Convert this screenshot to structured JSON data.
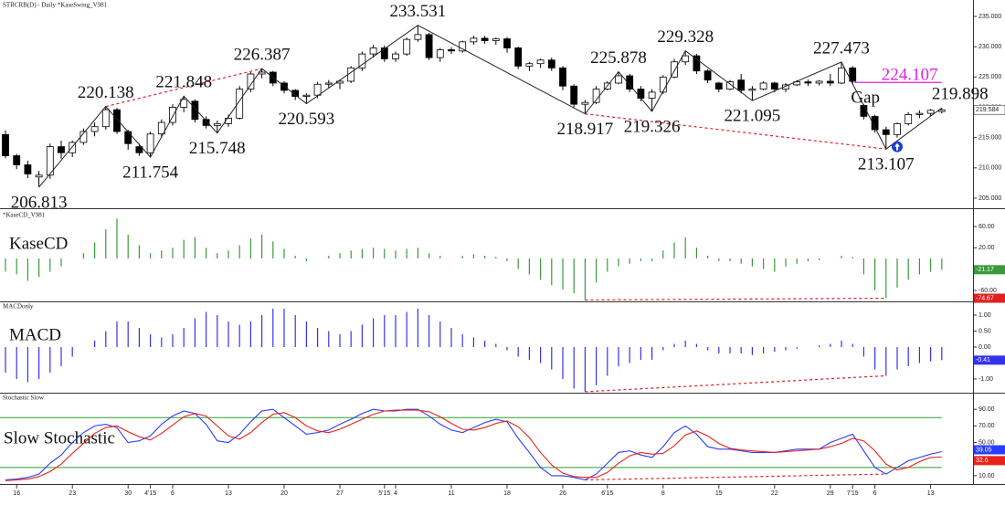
{
  "chart_data": [
    {
      "type": "candlestick",
      "title": "STRCRB(D) - Daily  *KaseSwing_V981",
      "open": [
        215.5,
        212.0,
        210.5,
        208.5,
        208.8,
        213.5,
        212.5,
        214.2,
        216.0,
        216.8,
        219.6,
        216.0,
        213.5,
        212.5,
        215.6,
        217.5,
        220.0,
        221.0,
        218.0,
        217.0,
        217.3,
        218.2,
        223.0,
        225.5,
        225.8,
        224.0,
        222.8,
        221.8,
        222.0,
        223.8,
        224.0,
        224.3,
        226.5,
        228.8,
        229.8,
        228.0,
        228.8,
        231.2,
        232.0,
        228.2,
        229.5,
        229.3,
        230.8,
        231.4,
        231.0,
        231.3,
        229.8,
        226.8,
        227.2,
        227.8,
        226.5,
        223.5,
        220.5,
        220.8,
        223.0,
        224.0,
        225.2,
        223.0,
        221.5,
        222.5,
        225.0,
        227.5,
        228.5,
        226.0,
        224.0,
        223.0,
        224.5,
        222.8,
        223.0,
        224.0,
        223.0,
        223.7,
        224.2,
        224.0,
        224.3,
        224.0,
        226.5,
        220.3,
        218.5,
        216.3,
        215.5,
        217.3,
        218.8,
        219.0,
        219.3
      ],
      "high": [
        216.2,
        212.3,
        211.2,
        209.5,
        214.0,
        214.5,
        214.5,
        216.5,
        217.5,
        220.138,
        219.9,
        216.3,
        214.0,
        216.0,
        218.0,
        220.5,
        221.848,
        221.3,
        218.5,
        217.8,
        218.8,
        223.5,
        225.8,
        226.387,
        226.0,
        224.3,
        223.0,
        222.3,
        224.2,
        224.5,
        224.6,
        226.8,
        229.2,
        230.3,
        230.2,
        229.2,
        231.5,
        233.531,
        232.3,
        229.8,
        229.9,
        231.0,
        231.8,
        231.8,
        231.5,
        231.6,
        230.0,
        227.5,
        228.0,
        228.2,
        226.8,
        223.8,
        221.2,
        223.5,
        224.3,
        225.878,
        225.5,
        223.5,
        223.0,
        225.3,
        228.0,
        229.328,
        228.8,
        226.3,
        224.2,
        224.5,
        225.5,
        223.5,
        224.3,
        224.2,
        224.0,
        224.5,
        224.6,
        224.5,
        225.5,
        227.473,
        226.8,
        220.5,
        218.8,
        216.8,
        217.5,
        219.2,
        219.5,
        219.7,
        219.898
      ],
      "low": [
        211.6,
        209.8,
        208.3,
        206.813,
        208.2,
        211.5,
        211.8,
        213.8,
        215.2,
        216.3,
        215.6,
        213.0,
        212.0,
        211.754,
        215.0,
        217.0,
        219.2,
        217.5,
        216.5,
        215.748,
        216.8,
        218.0,
        222.5,
        224.8,
        223.5,
        222.3,
        221.2,
        220.593,
        221.5,
        223.2,
        223.0,
        224.0,
        226.0,
        228.2,
        227.5,
        227.5,
        228.5,
        230.8,
        227.8,
        227.5,
        228.8,
        229.0,
        230.3,
        230.5,
        230.3,
        229.0,
        226.3,
        226.0,
        226.5,
        226.0,
        222.8,
        220.0,
        218.917,
        220.5,
        222.8,
        223.8,
        222.5,
        221.0,
        219.326,
        222.2,
        224.8,
        227.0,
        225.5,
        224.0,
        222.5,
        222.8,
        222.3,
        221.095,
        222.8,
        222.5,
        222.5,
        223.5,
        223.5,
        223.6,
        223.5,
        223.8,
        223.8,
        218.0,
        215.8,
        213.107,
        215.0,
        217.0,
        218.2,
        218.5,
        219.0
      ],
      "close": [
        212.0,
        210.5,
        209.0,
        208.8,
        213.5,
        212.5,
        214.2,
        216.0,
        216.8,
        219.6,
        216.0,
        214.0,
        212.5,
        215.6,
        217.5,
        220.0,
        221.3,
        218.0,
        217.0,
        217.3,
        218.2,
        223.0,
        225.5,
        225.8,
        224.0,
        222.8,
        221.8,
        222.0,
        223.8,
        224.0,
        224.3,
        226.5,
        228.8,
        229.8,
        228.0,
        228.8,
        231.2,
        232.0,
        228.2,
        229.5,
        229.3,
        230.8,
        231.4,
        231.0,
        231.3,
        229.8,
        226.8,
        227.2,
        227.8,
        226.5,
        223.5,
        220.5,
        220.8,
        223.0,
        224.0,
        225.2,
        223.0,
        221.5,
        222.5,
        225.0,
        227.5,
        228.5,
        226.0,
        224.5,
        223.0,
        224.2,
        222.8,
        223.0,
        224.0,
        223.0,
        223.7,
        224.2,
        224.0,
        224.3,
        224.0,
        226.5,
        224.3,
        218.5,
        216.3,
        215.5,
        217.3,
        218.8,
        219.0,
        219.5,
        219.584
      ],
      "up_color": "#ffffff",
      "down_color": "#000000",
      "swings": [
        206.813,
        220.138,
        211.754,
        221.848,
        215.748,
        226.387,
        220.593,
        233.531,
        218.917,
        225.878,
        219.326,
        229.328,
        221.095,
        227.473,
        213.107,
        219.898
      ],
      "level": {
        "value": 224.107,
        "color": "#e020e0"
      },
      "annotation": "Gap",
      "ylim": [
        203.34,
        237.71
      ],
      "yticks": [
        {
          "value": 205,
          "label": "205.000"
        },
        {
          "value": 210,
          "label": "210.000"
        },
        {
          "value": 215,
          "label": "215.000"
        },
        {
          "value": 220,
          "label": "220.000"
        },
        {
          "value": 225,
          "label": "225.000"
        },
        {
          "value": 230,
          "label": "230.000"
        },
        {
          "value": 235,
          "label": "235.000"
        }
      ]
    },
    {
      "type": "bar",
      "title": "*KaseCD_V981",
      "label": "KaseCD",
      "color": "#3a9a3a",
      "values": [
        -25,
        -30,
        -42,
        -35,
        -25,
        -15,
        0,
        10,
        30,
        55,
        75,
        45,
        25,
        10,
        15,
        20,
        35,
        40,
        20,
        10,
        15,
        25,
        38,
        45,
        32,
        18,
        5,
        -5,
        0,
        5,
        10,
        15,
        18,
        20,
        18,
        15,
        18,
        20,
        10,
        5,
        0,
        5,
        8,
        5,
        3,
        -5,
        -20,
        -30,
        -40,
        -50,
        -58,
        -65,
        -78,
        -45,
        -25,
        -15,
        -10,
        -5,
        -5,
        15,
        30,
        40,
        20,
        5,
        -5,
        -5,
        -10,
        -15,
        -20,
        -25,
        -15,
        -10,
        -5,
        -3,
        0,
        5,
        3,
        -30,
        -60,
        -74.67,
        -55,
        -40,
        -30,
        -25,
        -21.17
      ],
      "ylim": [
        -80.6,
        90.9
      ],
      "yticks": [
        {
          "value": 60,
          "label": "60.00"
        },
        {
          "value": 20,
          "label": "20.00"
        },
        {
          "value": -60,
          "label": "-60.00"
        }
      ]
    },
    {
      "type": "bar",
      "title": "MACDonly",
      "label": "MACD",
      "color": "#3333ee",
      "values": [
        -0.8,
        -1.0,
        -1.1,
        -1.0,
        -0.8,
        -0.6,
        -0.3,
        0.0,
        0.2,
        0.5,
        0.8,
        0.8,
        0.6,
        0.4,
        0.3,
        0.4,
        0.6,
        0.9,
        1.1,
        1.0,
        0.8,
        0.7,
        0.8,
        1.0,
        1.2,
        1.2,
        1.0,
        0.8,
        0.6,
        0.5,
        0.4,
        0.5,
        0.7,
        0.9,
        1.0,
        1.0,
        1.1,
        1.2,
        1.0,
        0.8,
        0.6,
        0.4,
        0.3,
        0.2,
        0.1,
        -0.1,
        -0.3,
        -0.4,
        -0.5,
        -0.7,
        -1.0,
        -1.3,
        -1.4,
        -1.2,
        -0.9,
        -0.6,
        -0.5,
        -0.4,
        -0.4,
        -0.1,
        0.1,
        0.2,
        0.1,
        -0.1,
        -0.2,
        -0.2,
        -0.2,
        -0.25,
        -0.2,
        -0.15,
        -0.1,
        -0.05,
        0.0,
        0.05,
        0.1,
        0.2,
        0.1,
        -0.3,
        -0.7,
        -0.9,
        -0.7,
        -0.6,
        -0.5,
        -0.45,
        -0.41
      ],
      "ylim": [
        -1.43,
        1.43
      ],
      "yticks": [
        {
          "value": 1,
          "label": "1.00"
        },
        {
          "value": 0.5,
          "label": "0.50"
        },
        {
          "value": 0,
          "label": "0.00"
        },
        {
          "value": -1,
          "label": "-1.00"
        }
      ]
    },
    {
      "type": "line",
      "title": "Stochastic Slow",
      "label": "Slow Stochastic",
      "categories": [
        null,
        "16",
        null,
        null,
        null,
        null,
        "23",
        null,
        null,
        null,
        null,
        "30",
        null,
        "4'15",
        null,
        "6",
        null,
        null,
        null,
        null,
        "13",
        null,
        null,
        null,
        null,
        "20",
        null,
        null,
        null,
        null,
        "27",
        null,
        null,
        null,
        "5'15",
        "4",
        null,
        null,
        null,
        null,
        "11",
        null,
        null,
        null,
        null,
        "18",
        null,
        null,
        null,
        null,
        "26",
        null,
        null,
        null,
        "6'15",
        null,
        null,
        null,
        null,
        "8",
        null,
        null,
        null,
        null,
        "15",
        null,
        null,
        null,
        null,
        "22",
        null,
        null,
        null,
        null,
        "29",
        null,
        "7'15",
        null,
        "6",
        null,
        null,
        null,
        null,
        "13",
        null
      ],
      "series": [
        {
          "color": "#2a3cff",
          "values": [
            5,
            6,
            8,
            12,
            25,
            35,
            50,
            62,
            70,
            72,
            68,
            50,
            52,
            58,
            72,
            82,
            88,
            85,
            72,
            52,
            50,
            60,
            75,
            88,
            90,
            80,
            70,
            60,
            62,
            65,
            72,
            78,
            85,
            90,
            88,
            88,
            90,
            90,
            82,
            72,
            65,
            62,
            68,
            74,
            78,
            75,
            55,
            38,
            20,
            10,
            10,
            8,
            5,
            12,
            25,
            38,
            40,
            35,
            32,
            45,
            62,
            70,
            60,
            45,
            42,
            42,
            40,
            38,
            38,
            38,
            40,
            42,
            42,
            42,
            50,
            55,
            60,
            40,
            20,
            12,
            20,
            28,
            32,
            36,
            39.05
          ]
        },
        {
          "color": "#e8221c",
          "values": [
            4,
            5,
            6,
            9,
            15,
            24,
            37,
            49,
            61,
            68,
            70,
            63,
            57,
            53,
            61,
            71,
            81,
            85,
            82,
            70,
            58,
            54,
            62,
            74,
            84,
            86,
            80,
            70,
            64,
            62,
            66,
            72,
            78,
            84,
            88,
            89,
            89,
            89,
            87,
            81,
            73,
            66,
            65,
            68,
            73,
            76,
            69,
            56,
            38,
            23,
            13,
            9,
            8,
            8,
            14,
            25,
            34,
            38,
            36,
            37,
            46,
            59,
            64,
            58,
            49,
            43,
            41,
            40,
            39,
            38,
            39,
            40,
            41,
            42,
            45,
            49,
            55,
            52,
            40,
            24,
            17,
            20,
            27,
            32,
            32.6
          ]
        }
      ],
      "levels": [
        80,
        20
      ],
      "level_color": "#2e9e2e",
      "ylim": [
        0,
        110
      ],
      "yticks": [
        {
          "value": 90,
          "label": "90.00"
        },
        {
          "value": 70,
          "label": "70.00"
        },
        {
          "value": 50,
          "label": "50.00"
        },
        {
          "value": 10,
          "label": "10.00"
        }
      ]
    }
  ]
}
